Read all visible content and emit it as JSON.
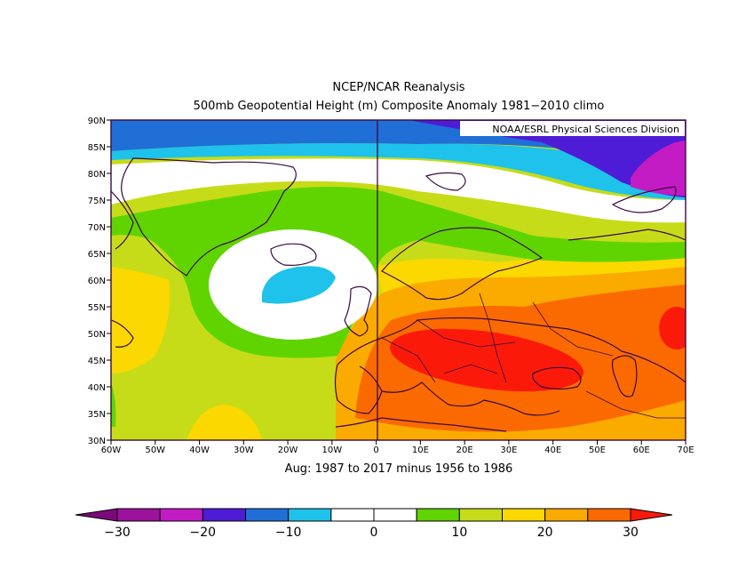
{
  "chart_data": {
    "type": "heatmap",
    "title": "NCEP/NCAR Reanalysis",
    "subtitle": "500mb Geopotential Height (m) Composite Anomaly 1981−2010 climo",
    "credit": "NOAA/ESRL Physical Sciences Division",
    "caption": "Aug: 1987 to 2017 minus 1956 to 1986",
    "units": "m",
    "x_range": [
      -60,
      70
    ],
    "y_range": [
      30,
      90
    ],
    "x_ticks": [
      {
        "value": -60,
        "label": "60W"
      },
      {
        "value": -50,
        "label": "50W"
      },
      {
        "value": -40,
        "label": "40W"
      },
      {
        "value": -30,
        "label": "30W"
      },
      {
        "value": -20,
        "label": "20W"
      },
      {
        "value": -10,
        "label": "10W"
      },
      {
        "value": 0,
        "label": "0"
      },
      {
        "value": 10,
        "label": "10E"
      },
      {
        "value": 20,
        "label": "20E"
      },
      {
        "value": 30,
        "label": "30E"
      },
      {
        "value": 40,
        "label": "40E"
      },
      {
        "value": 50,
        "label": "50E"
      },
      {
        "value": 60,
        "label": "60E"
      },
      {
        "value": 70,
        "label": "70E"
      }
    ],
    "y_ticks": [
      {
        "value": 90,
        "label": "90N"
      },
      {
        "value": 85,
        "label": "85N"
      },
      {
        "value": 80,
        "label": "80N"
      },
      {
        "value": 75,
        "label": "75N"
      },
      {
        "value": 70,
        "label": "70N"
      },
      {
        "value": 65,
        "label": "65N"
      },
      {
        "value": 60,
        "label": "60N"
      },
      {
        "value": 55,
        "label": "55N"
      },
      {
        "value": 50,
        "label": "50N"
      },
      {
        "value": 45,
        "label": "45N"
      },
      {
        "value": 40,
        "label": "40N"
      },
      {
        "value": 35,
        "label": "35N"
      },
      {
        "value": 30,
        "label": "30N"
      }
    ],
    "colorbar": {
      "levels": [
        -30,
        -25,
        -20,
        -15,
        -10,
        -5,
        0,
        5,
        10,
        15,
        20,
        25,
        30
      ],
      "colors": [
        "#7a0a7a",
        "#9c129c",
        "#c31bc3",
        "#4e1bd6",
        "#1f6fd6",
        "#1ec2ea",
        "#ffffff",
        "#ffffff",
        "#5fd400",
        "#c7dc18",
        "#fbd800",
        "#fbaa00",
        "#fb6a00",
        "#fb1a0a"
      ],
      "labels": [
        {
          "value": -30,
          "label": "−30"
        },
        {
          "value": -20,
          "label": "−20"
        },
        {
          "value": -10,
          "label": "−10"
        },
        {
          "value": 0,
          "label": "0"
        },
        {
          "value": 10,
          "label": "10"
        },
        {
          "value": 20,
          "label": "20"
        },
        {
          "value": 30,
          "label": "30"
        }
      ]
    },
    "bands": [
      {
        "name": "polar-band-1",
        "lat": 88,
        "value": -13
      },
      {
        "name": "polar-band-2",
        "lat": 85.5,
        "value": -9
      },
      {
        "name": "polar-band-3",
        "lat": 84,
        "value": -6
      },
      {
        "name": "arctic-white-band",
        "lat": 82,
        "value": 0
      },
      {
        "name": "subarctic-green-band",
        "lat": 74,
        "value": 7
      },
      {
        "name": "midlat-yellowgreen-band",
        "lat": 67,
        "value": 12
      }
    ],
    "anomaly_centers": [
      {
        "name": "atlantic-low-center",
        "lon": -17,
        "lat": 58.5,
        "value": -7
      },
      {
        "name": "europe-high-center",
        "lon": 25,
        "lat": 45,
        "value": 32
      },
      {
        "name": "east-high-center",
        "lon": 68,
        "lat": 51,
        "value": 27
      },
      {
        "name": "barents-low-center",
        "lon": 66,
        "lat": 84,
        "value": -22
      }
    ]
  }
}
